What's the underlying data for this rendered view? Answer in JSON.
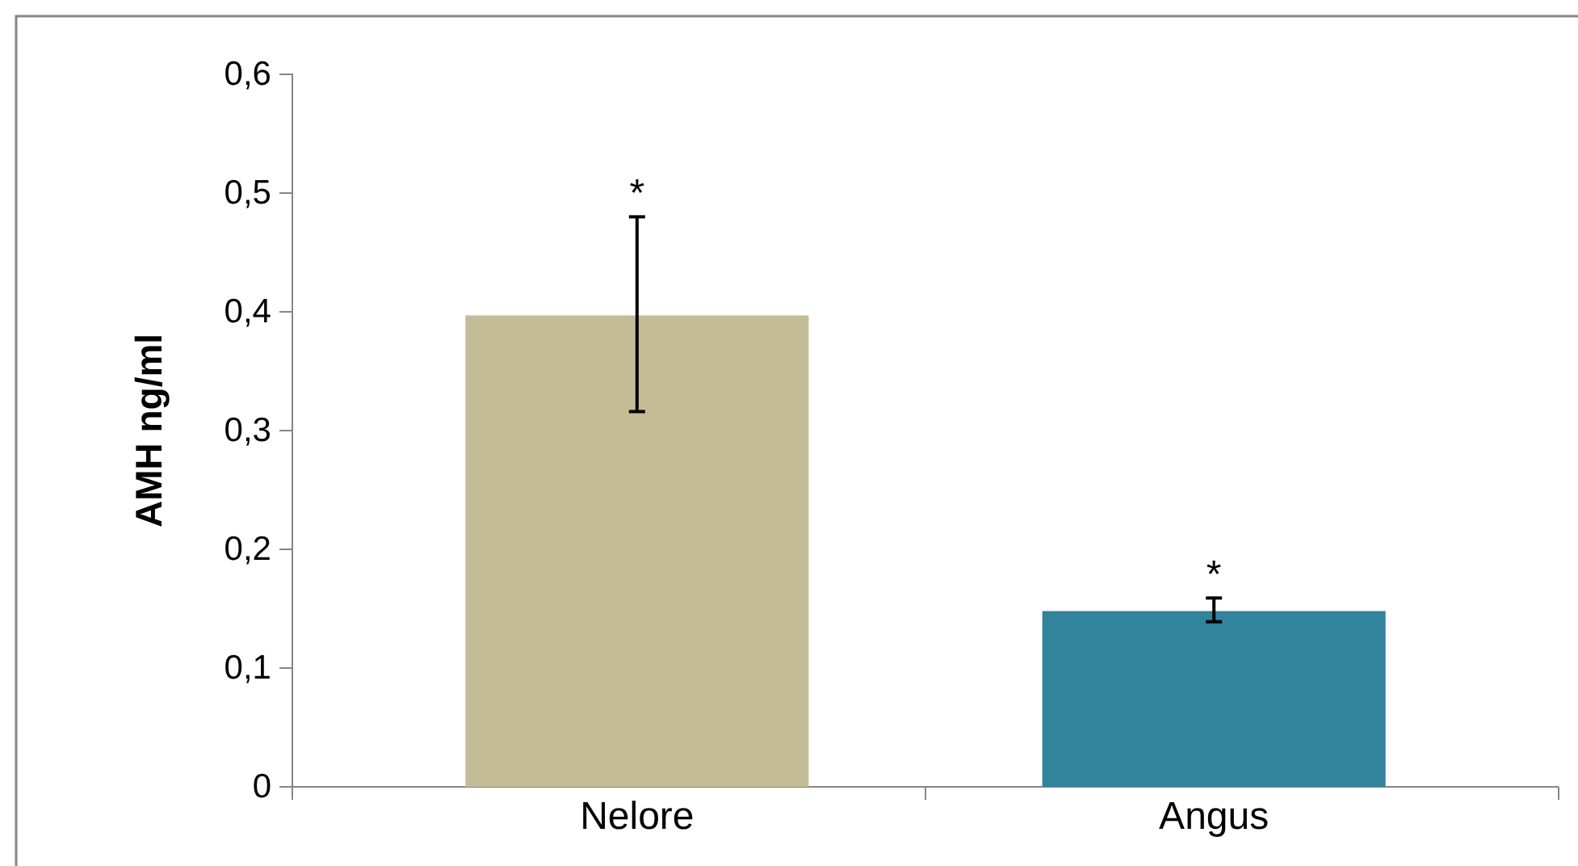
{
  "chart_data": {
    "type": "bar",
    "ylabel": "AMH ng/ml",
    "categories": [
      "Nelore",
      "Angus"
    ],
    "values": [
      0.397,
      0.148
    ],
    "colors": [
      "#c4bc96",
      "#31849b"
    ],
    "errors": [
      [
        0.316,
        0.48
      ],
      [
        0.139,
        0.159
      ]
    ],
    "ylim": [
      0,
      0.6
    ],
    "yticks": [
      {
        "value": 0,
        "label": "0"
      },
      {
        "value": 0.1,
        "label": "0,1"
      },
      {
        "value": 0.2,
        "label": "0,2"
      },
      {
        "value": 0.3,
        "label": "0,3"
      },
      {
        "value": 0.4,
        "label": "0,4"
      },
      {
        "value": 0.5,
        "label": "0,5"
      },
      {
        "value": 0.6,
        "label": "0,6"
      }
    ],
    "annotations": [
      "*",
      "*"
    ]
  }
}
